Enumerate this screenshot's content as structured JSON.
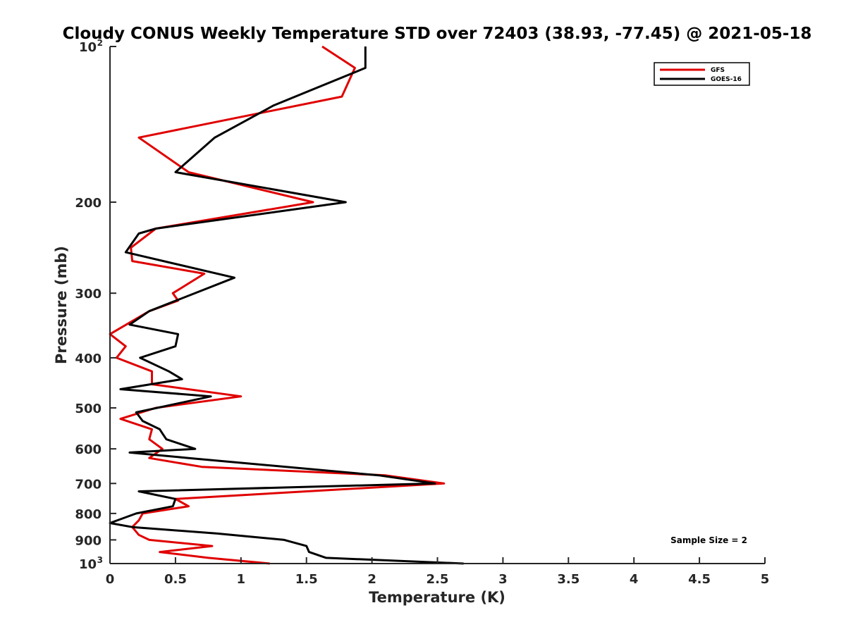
{
  "chart_data": {
    "type": "line",
    "title": "Cloudy CONUS Weekly Temperature STD over 72403 (38.93, -77.45) @ 2021-05-18",
    "xlabel": "Temperature (K)",
    "ylabel": "Pressure (mb)",
    "xlim": [
      0,
      5
    ],
    "ylim": [
      100,
      1000
    ],
    "y_scale": "log",
    "y_reversed": true,
    "x_ticks": [
      "0",
      "0.5",
      "1",
      "1.5",
      "2",
      "2.5",
      "3",
      "3.5",
      "4",
      "4.5",
      "5"
    ],
    "y_ticks": [
      {
        "value": 100,
        "label": "10",
        "exp": "2"
      },
      {
        "value": 200,
        "label": "200"
      },
      {
        "value": 300,
        "label": "300"
      },
      {
        "value": 400,
        "label": "400"
      },
      {
        "value": 500,
        "label": "500"
      },
      {
        "value": 600,
        "label": "600"
      },
      {
        "value": 700,
        "label": "700"
      },
      {
        "value": 800,
        "label": "800"
      },
      {
        "value": 900,
        "label": "900"
      },
      {
        "value": 1000,
        "label": "10",
        "exp": "3"
      }
    ],
    "grid": false,
    "legend_position": "top-right",
    "annotation": "Sample Size = 2",
    "series": [
      {
        "name": "GFS",
        "color": "#e00000",
        "points": [
          [
            1.22,
            1000
          ],
          [
            0.75,
            975
          ],
          [
            0.38,
            950
          ],
          [
            0.78,
            925
          ],
          [
            0.3,
            900
          ],
          [
            0.22,
            880
          ],
          [
            0.17,
            850
          ],
          [
            0.22,
            825
          ],
          [
            0.25,
            800
          ],
          [
            0.6,
            775
          ],
          [
            0.5,
            750
          ],
          [
            2.55,
            700
          ],
          [
            2.1,
            675
          ],
          [
            0.7,
            650
          ],
          [
            0.3,
            625
          ],
          [
            0.4,
            600
          ],
          [
            0.3,
            575
          ],
          [
            0.32,
            550
          ],
          [
            0.08,
            525
          ],
          [
            0.35,
            500
          ],
          [
            1.0,
            475
          ],
          [
            0.32,
            450
          ],
          [
            0.32,
            425
          ],
          [
            0.05,
            400
          ],
          [
            0.12,
            380
          ],
          [
            0.0,
            360
          ],
          [
            0.3,
            325
          ],
          [
            0.52,
            310
          ],
          [
            0.48,
            300
          ],
          [
            0.72,
            275
          ],
          [
            0.17,
            260
          ],
          [
            0.16,
            245
          ],
          [
            0.35,
            225
          ],
          [
            1.55,
            200
          ],
          [
            0.6,
            175
          ],
          [
            0.22,
            150
          ],
          [
            1.77,
            125
          ],
          [
            1.87,
            110
          ],
          [
            1.62,
            100
          ]
        ]
      },
      {
        "name": "GOES-16",
        "color": "#000000",
        "points": [
          [
            2.7,
            1000
          ],
          [
            1.65,
            975
          ],
          [
            1.52,
            950
          ],
          [
            1.5,
            925
          ],
          [
            1.33,
            900
          ],
          [
            0.82,
            875
          ],
          [
            0.17,
            850
          ],
          [
            0.0,
            835
          ],
          [
            0.2,
            800
          ],
          [
            0.48,
            775
          ],
          [
            0.5,
            750
          ],
          [
            0.22,
            725
          ],
          [
            2.48,
            700
          ],
          [
            2.05,
            675
          ],
          [
            0.6,
            625
          ],
          [
            0.15,
            610
          ],
          [
            0.65,
            600
          ],
          [
            0.43,
            575
          ],
          [
            0.4,
            560
          ],
          [
            0.38,
            550
          ],
          [
            0.25,
            530
          ],
          [
            0.2,
            510
          ],
          [
            0.77,
            475
          ],
          [
            0.08,
            460
          ],
          [
            0.55,
            440
          ],
          [
            0.45,
            425
          ],
          [
            0.23,
            400
          ],
          [
            0.5,
            380
          ],
          [
            0.52,
            360
          ],
          [
            0.15,
            345
          ],
          [
            0.3,
            325
          ],
          [
            0.95,
            280
          ],
          [
            0.12,
            250
          ],
          [
            0.22,
            230
          ],
          [
            0.35,
            225
          ],
          [
            1.8,
            200
          ],
          [
            0.5,
            175
          ],
          [
            0.8,
            150
          ],
          [
            1.25,
            130
          ],
          [
            1.95,
            110
          ],
          [
            1.95,
            100
          ]
        ]
      }
    ]
  }
}
